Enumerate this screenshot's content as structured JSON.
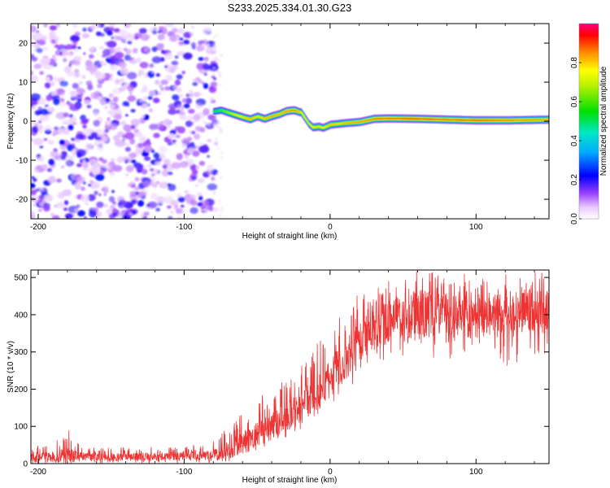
{
  "title": "S233.2025.334.01.30.G23",
  "chart_data": [
    {
      "type": "heatmap",
      "xlabel": "Height of straight line (km)",
      "ylabel": "Frequency (Hz)",
      "xlim": [
        -205,
        150
      ],
      "ylim": [
        -25,
        25
      ],
      "xticks": [
        -200,
        -100,
        0,
        100
      ],
      "xtick_labels": [
        "-200",
        "-100",
        "0",
        "100"
      ],
      "yticks": [
        -20,
        -10,
        0,
        10,
        20
      ],
      "ytick_labels": [
        "-20",
        "-10",
        "0",
        "10",
        "20"
      ],
      "colorbar": {
        "label": "Normalized spectral amplitude",
        "range": [
          0,
          1
        ],
        "ticks": [
          0.0,
          0.2,
          0.4,
          0.6,
          0.8
        ],
        "tick_labels": [
          "0.0",
          "0.2",
          "0.4",
          "0.6",
          "0.8"
        ]
      },
      "noise_region_x": [
        -205,
        -80
      ],
      "ridge": {
        "x": [
          -80,
          -75,
          -70,
          -65,
          -60,
          -55,
          -50,
          -45,
          -40,
          -35,
          -30,
          -25,
          -20,
          -15,
          -12,
          -8,
          -5,
          0,
          5,
          10,
          20,
          30,
          40,
          60,
          80,
          100,
          120,
          135,
          150
        ],
        "freq": [
          2.5,
          2.8,
          2.2,
          1.6,
          1.0,
          0.5,
          1.2,
          0.6,
          1.3,
          1.8,
          2.6,
          2.8,
          2.2,
          -0.6,
          -1.6,
          -1.4,
          -1.7,
          -0.9,
          -0.7,
          -0.5,
          -0.2,
          0.6,
          0.7,
          0.6,
          0.4,
          0.2,
          0.2,
          0.3,
          0.4
        ],
        "amplitude": [
          0.55,
          0.62,
          0.7,
          0.78,
          0.82,
          0.85,
          0.8,
          0.84,
          0.88,
          0.85,
          0.9,
          0.92,
          0.8,
          0.75,
          0.8,
          0.82,
          0.78,
          0.85,
          0.8,
          0.86,
          0.9,
          0.93,
          0.95,
          0.96,
          0.94,
          0.95,
          0.92,
          0.9,
          0.88
        ]
      }
    },
    {
      "type": "line",
      "xlabel": "Height of straight line (km)",
      "ylabel": "SNR (10 * v/v)",
      "xlim": [
        -205,
        150
      ],
      "ylim": [
        0,
        520
      ],
      "xticks": [
        -200,
        -100,
        0,
        100
      ],
      "xtick_labels": [
        "-200",
        "-100",
        "0",
        "100"
      ],
      "yticks": [
        0,
        100,
        200,
        300,
        400,
        500
      ],
      "ytick_labels": [
        "0",
        "100",
        "200",
        "300",
        "400",
        "500"
      ],
      "color": "#ee3333",
      "series": [
        {
          "name": "SNR",
          "x": [
            -205,
            -190,
            -180,
            -170,
            -150,
            -120,
            -100,
            -80,
            -70,
            -60,
            -50,
            -40,
            -30,
            -20,
            -10,
            0,
            10,
            20,
            30,
            40,
            50,
            60,
            70,
            80,
            90,
            100,
            110,
            120,
            130,
            140,
            150
          ],
          "mean": [
            20,
            20,
            20,
            18,
            18,
            18,
            20,
            22,
            35,
            55,
            75,
            100,
            125,
            150,
            190,
            230,
            280,
            330,
            360,
            380,
            390,
            400,
            405,
            400,
            400,
            400,
            395,
            400,
            400,
            405,
            410
          ],
          "peak": [
            50,
            50,
            95,
            45,
            45,
            45,
            45,
            60,
            100,
            140,
            180,
            200,
            230,
            260,
            320,
            360,
            420,
            460,
            480,
            500,
            510,
            520,
            515,
            505,
            515,
            520,
            500,
            510,
            515,
            515,
            520
          ],
          "trough": [
            0,
            0,
            0,
            0,
            0,
            0,
            0,
            0,
            5,
            15,
            30,
            50,
            70,
            90,
            120,
            150,
            190,
            230,
            260,
            270,
            270,
            260,
            270,
            280,
            270,
            280,
            270,
            260,
            270,
            280,
            300
          ]
        }
      ]
    }
  ]
}
